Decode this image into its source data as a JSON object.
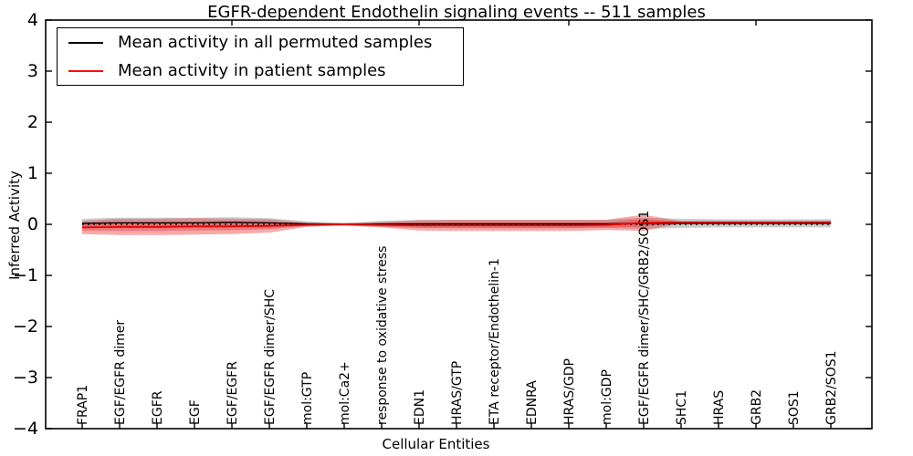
{
  "chart_data": {
    "type": "line",
    "title": "EGFR-dependent Endothelin signaling events -- 511 samples",
    "xlabel": "Cellular Entities",
    "ylabel": "Inferred Activity",
    "ylim": [
      -4,
      4
    ],
    "y_tick_labels": [
      "4",
      "3",
      "2",
      "1",
      "0",
      "−1",
      "−2",
      "−3",
      "−4"
    ],
    "grid": false,
    "legend_position": "upper left",
    "zero_reference_line": 0,
    "top_tick_indices": [
      4,
      9,
      13,
      18
    ],
    "categories": [
      "FRAP1",
      "EGF/EGFR dimer",
      "EGFR",
      "EGF",
      "EGF/EGFR",
      "EGF/EGFR dimer/SHC",
      "mol:GTP",
      "mol:Ca2+",
      "response to oxidative stress",
      "EDN1",
      "HRAS/GTP",
      "ETA receptor/Endothelin-1",
      "EDNRA",
      "HRAS/GDP",
      "mol:GDP",
      "EGF/EGFR dimer/SHC/GRB2/SOS1",
      "SHC1",
      "HRAS",
      "GRB2",
      "SOS1",
      "GRB2/SOS1"
    ],
    "series": [
      {
        "name": "Mean activity in all permuted samples",
        "color": "#000000",
        "band_color": "#999999",
        "band_opacity": 0.5,
        "values": [
          0.02,
          0.03,
          0.03,
          0.03,
          0.04,
          0.03,
          0.01,
          0.0,
          0.01,
          0.01,
          0.01,
          0.01,
          0.01,
          0.01,
          0.01,
          0.02,
          0.02,
          0.02,
          0.02,
          0.02,
          0.02
        ],
        "band_halfwidth": [
          0.09,
          0.1,
          0.1,
          0.1,
          0.1,
          0.09,
          0.05,
          0.03,
          0.06,
          0.08,
          0.08,
          0.08,
          0.08,
          0.08,
          0.08,
          0.11,
          0.09,
          0.08,
          0.08,
          0.08,
          0.08
        ]
      },
      {
        "name": "Mean activity in patient samples",
        "color": "#e60000",
        "band_color": "#e84545",
        "band_opacity": 0.45,
        "values": [
          -0.06,
          -0.05,
          -0.05,
          -0.04,
          -0.04,
          -0.03,
          -0.01,
          0.0,
          -0.01,
          -0.02,
          -0.02,
          -0.02,
          -0.02,
          -0.02,
          -0.01,
          0.03,
          0.04,
          0.04,
          0.04,
          0.04,
          0.04
        ],
        "band_halfwidth": [
          0.13,
          0.16,
          0.16,
          0.16,
          0.15,
          0.13,
          0.04,
          0.02,
          0.05,
          0.1,
          0.11,
          0.11,
          0.11,
          0.11,
          0.1,
          0.16,
          0.02,
          0.02,
          0.02,
          0.02,
          0.03
        ]
      }
    ]
  }
}
